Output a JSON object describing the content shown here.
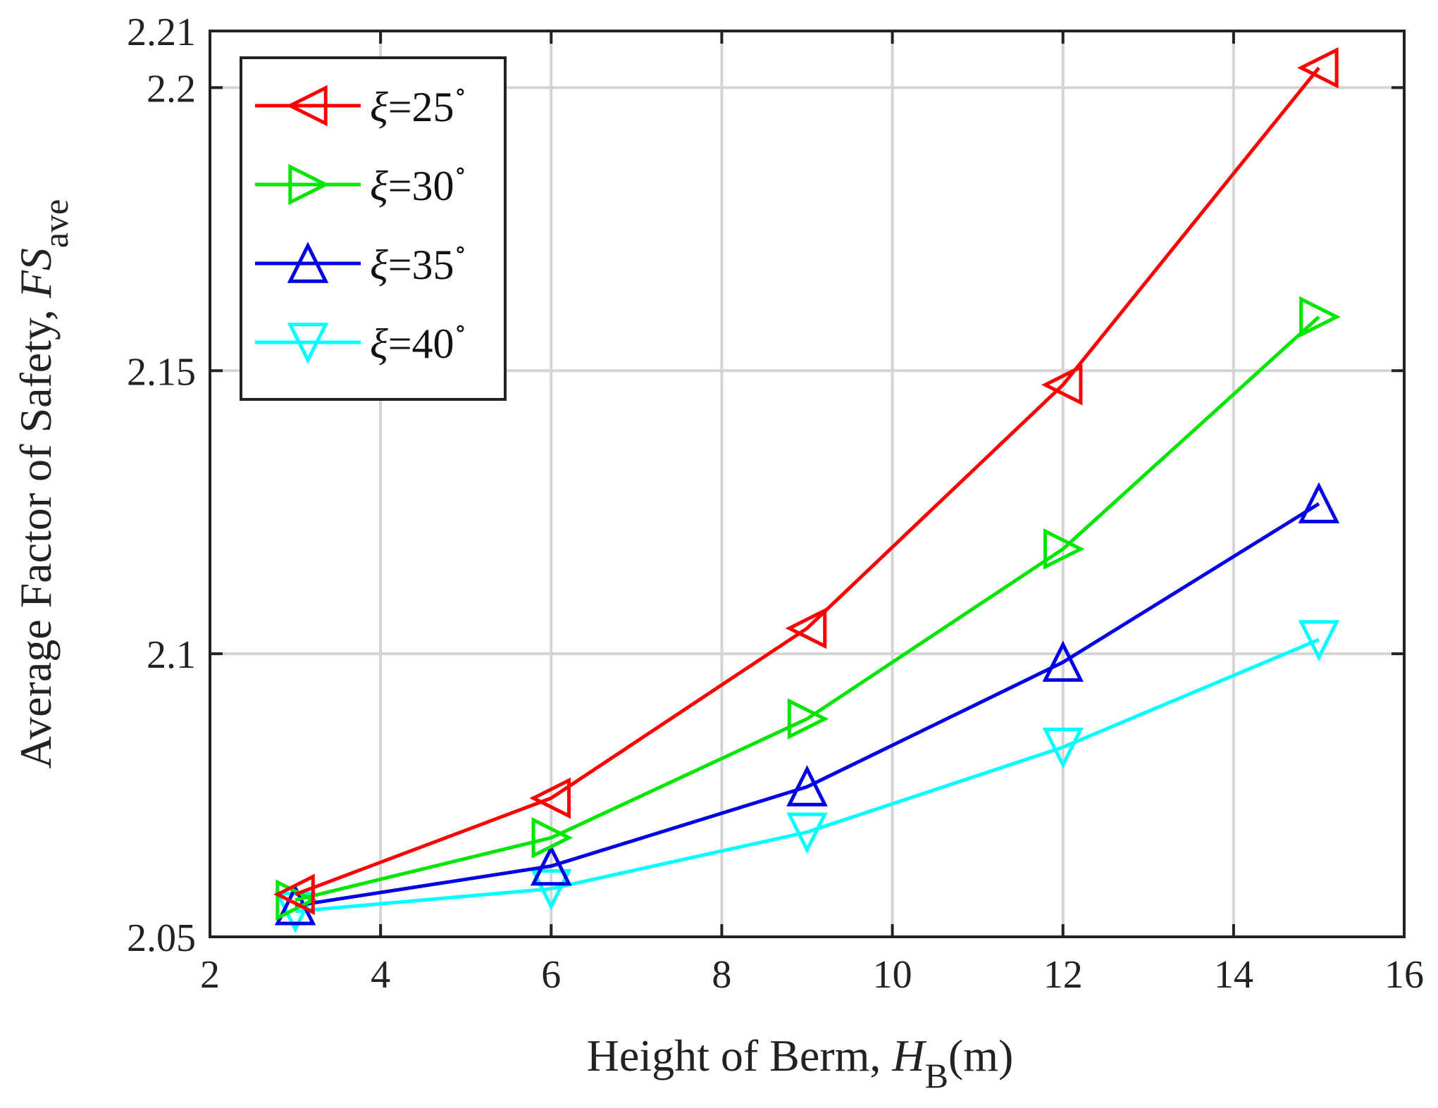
{
  "chart_data": {
    "type": "line",
    "title": "",
    "xlabel": {
      "main": "Height of Berm, ",
      "var": "H",
      "sub": "B",
      "unit": "(m)"
    },
    "ylabel": {
      "main": "Average Factor of Safety, ",
      "var": "FS",
      "sub": "ave"
    },
    "xlim": [
      2,
      16
    ],
    "ylim": [
      2.05,
      2.21
    ],
    "x_ticks": [
      2,
      4,
      6,
      8,
      10,
      12,
      14,
      16
    ],
    "x_tick_labels": [
      "2",
      "4",
      "6",
      "8",
      "10",
      "12",
      "14",
      "16"
    ],
    "y_ticks": [
      2.05,
      2.1,
      2.15,
      2.2,
      2.21
    ],
    "y_tick_labels": [
      "2.05",
      "2.1",
      "2.15",
      "2.2",
      "2.21"
    ],
    "grid": true,
    "legend_position": "top-left",
    "x": [
      3,
      6,
      9,
      12,
      15
    ],
    "series": [
      {
        "name": "ξ=25°",
        "symbol": "ξ",
        "label": "=25",
        "degree": "∘",
        "color": "#ff0000",
        "marker": "triangle-left",
        "values": [
          2.0575,
          2.0745,
          2.1045,
          2.1475,
          2.2035
        ]
      },
      {
        "name": "ξ=30°",
        "symbol": "ξ",
        "label": "=30",
        "degree": "∘",
        "color": "#00e600",
        "marker": "triangle-right",
        "values": [
          2.0565,
          2.0675,
          2.0885,
          2.1185,
          2.1595
        ]
      },
      {
        "name": "ξ=35°",
        "symbol": "ξ",
        "label": "=35",
        "degree": "∘",
        "color": "#0000e6",
        "marker": "triangle-up",
        "values": [
          2.0555,
          2.0625,
          2.0765,
          2.0985,
          2.1265
        ]
      },
      {
        "name": "ξ=40°",
        "symbol": "ξ",
        "label": "=40",
        "degree": "∘",
        "color": "#00ffff",
        "marker": "triangle-down",
        "values": [
          2.0545,
          2.0585,
          2.0685,
          2.0835,
          2.1025
        ]
      }
    ]
  }
}
